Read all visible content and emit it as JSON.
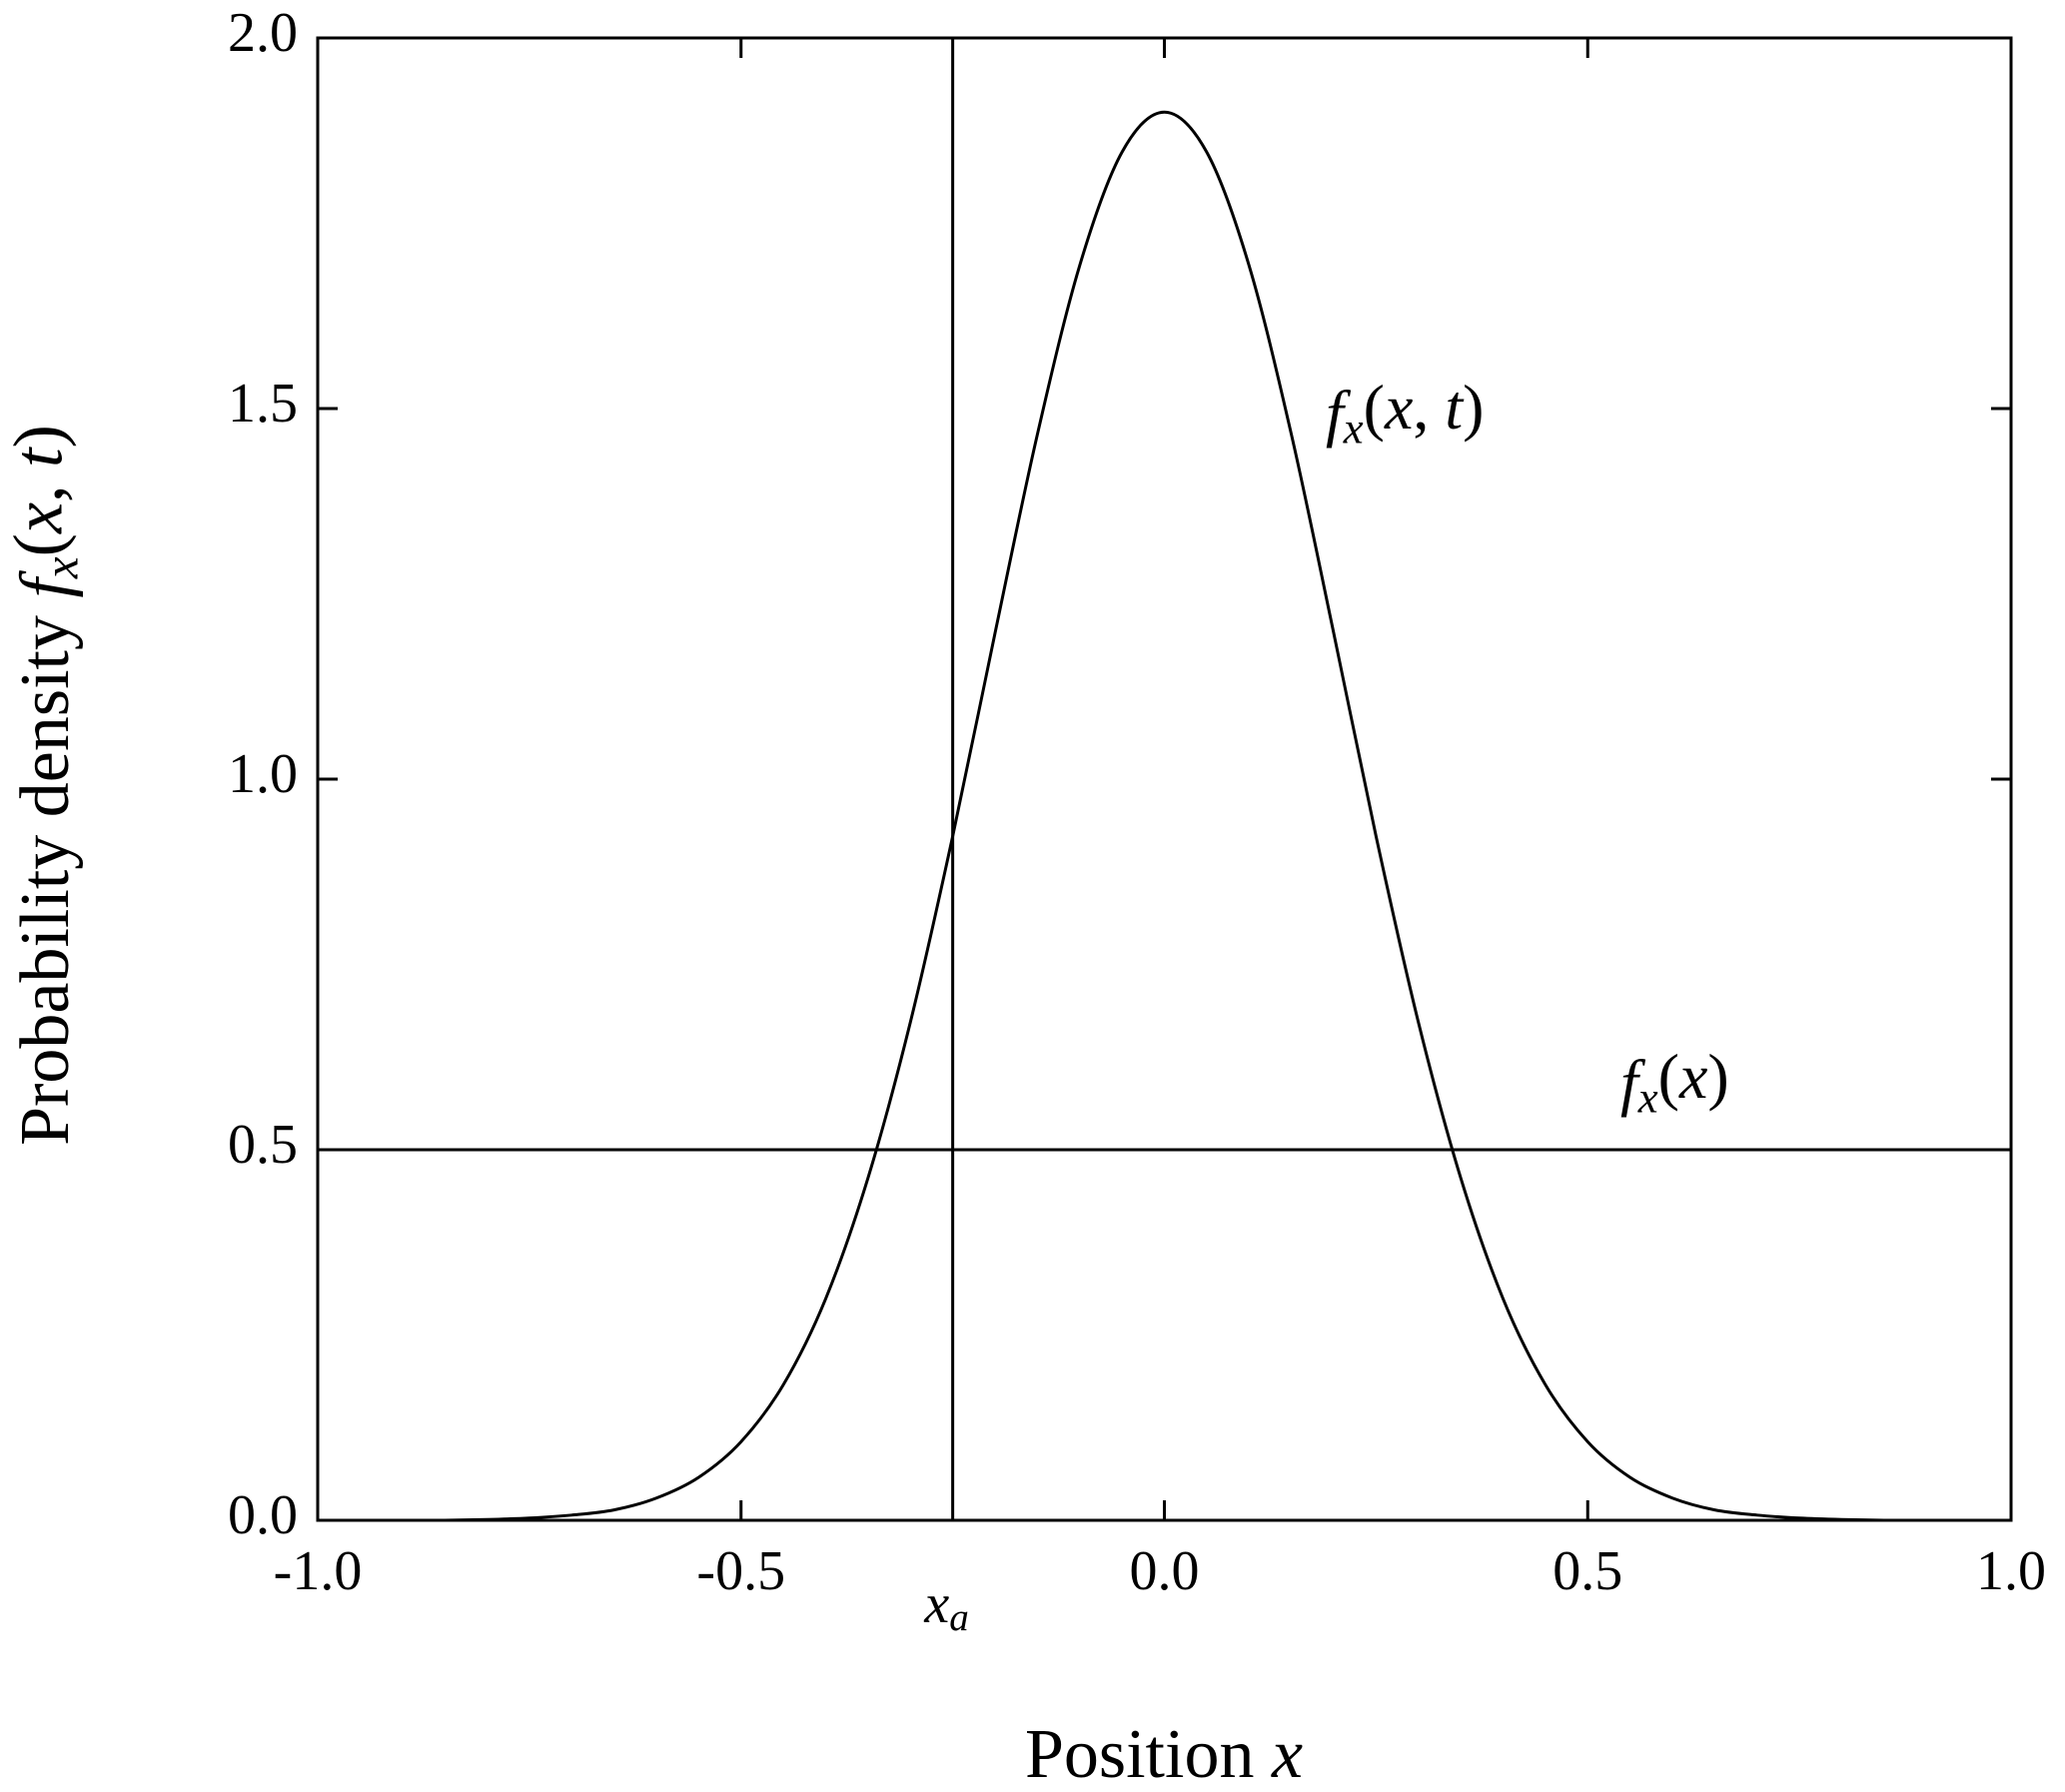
{
  "chart_data": {
    "type": "line",
    "xlabel": [
      "Position ",
      "x"
    ],
    "ylabel": [
      "Probability density ",
      "f",
      "x",
      "(",
      "x",
      ", ",
      "t",
      ")"
    ],
    "x": [
      -1,
      -0.95,
      -0.9,
      -0.85,
      -0.8,
      -0.75,
      -0.7,
      -0.65,
      -0.6,
      -0.55,
      -0.5,
      -0.45,
      -0.4,
      -0.35,
      -0.3,
      -0.25,
      -0.2,
      -0.15,
      -0.1,
      -0.05,
      0,
      0.05,
      0.1,
      0.15,
      0.2,
      0.25,
      0.3,
      0.35,
      0.4,
      0.45,
      0.5,
      0.55,
      0.6,
      0.65,
      0.7,
      0.75,
      0.8,
      0.85,
      0.9,
      0.95,
      1
    ],
    "series": [
      {
        "color": "#000000",
        "values": [
          0,
          0,
          0,
          0,
          0.001,
          0.003,
          0.007,
          0.014,
          0.03,
          0.058,
          0.106,
          0.183,
          0.299,
          0.462,
          0.672,
          0.923,
          1.197,
          1.465,
          1.693,
          1.846,
          1.9,
          1.846,
          1.693,
          1.465,
          1.197,
          0.923,
          0.672,
          0.462,
          0.299,
          0.183,
          0.106,
          0.058,
          0.03,
          0.014,
          0.007,
          0.003,
          0.001,
          0,
          0,
          0,
          0
        ]
      }
    ],
    "hline": {
      "y": 0.5,
      "label": [
        "f",
        "x",
        "(",
        "x",
        ")"
      ]
    },
    "vline": {
      "x": -0.25,
      "label": [
        "x",
        "a"
      ]
    },
    "annotations": [
      {
        "text": [
          "f",
          "x",
          "(",
          "x",
          ", ",
          "t",
          ")"
        ]
      }
    ],
    "xlim": [
      -1,
      1
    ],
    "ylim": [
      0,
      2
    ],
    "xticks": [
      {
        "value": -1,
        "label": "-1.0"
      },
      {
        "value": -0.5,
        "label": "-0.5"
      },
      {
        "value": 0,
        "label": "0.0"
      },
      {
        "value": 0.5,
        "label": "0.5"
      },
      {
        "value": 1,
        "label": "1.0"
      }
    ],
    "yticks": [
      {
        "value": 0,
        "label": "0.0"
      },
      {
        "value": 0.5,
        "label": "0.5"
      },
      {
        "value": 1,
        "label": "1.0"
      },
      {
        "value": 1.5,
        "label": "1.5"
      },
      {
        "value": 2,
        "label": "2.0"
      }
    ],
    "grid": false
  }
}
